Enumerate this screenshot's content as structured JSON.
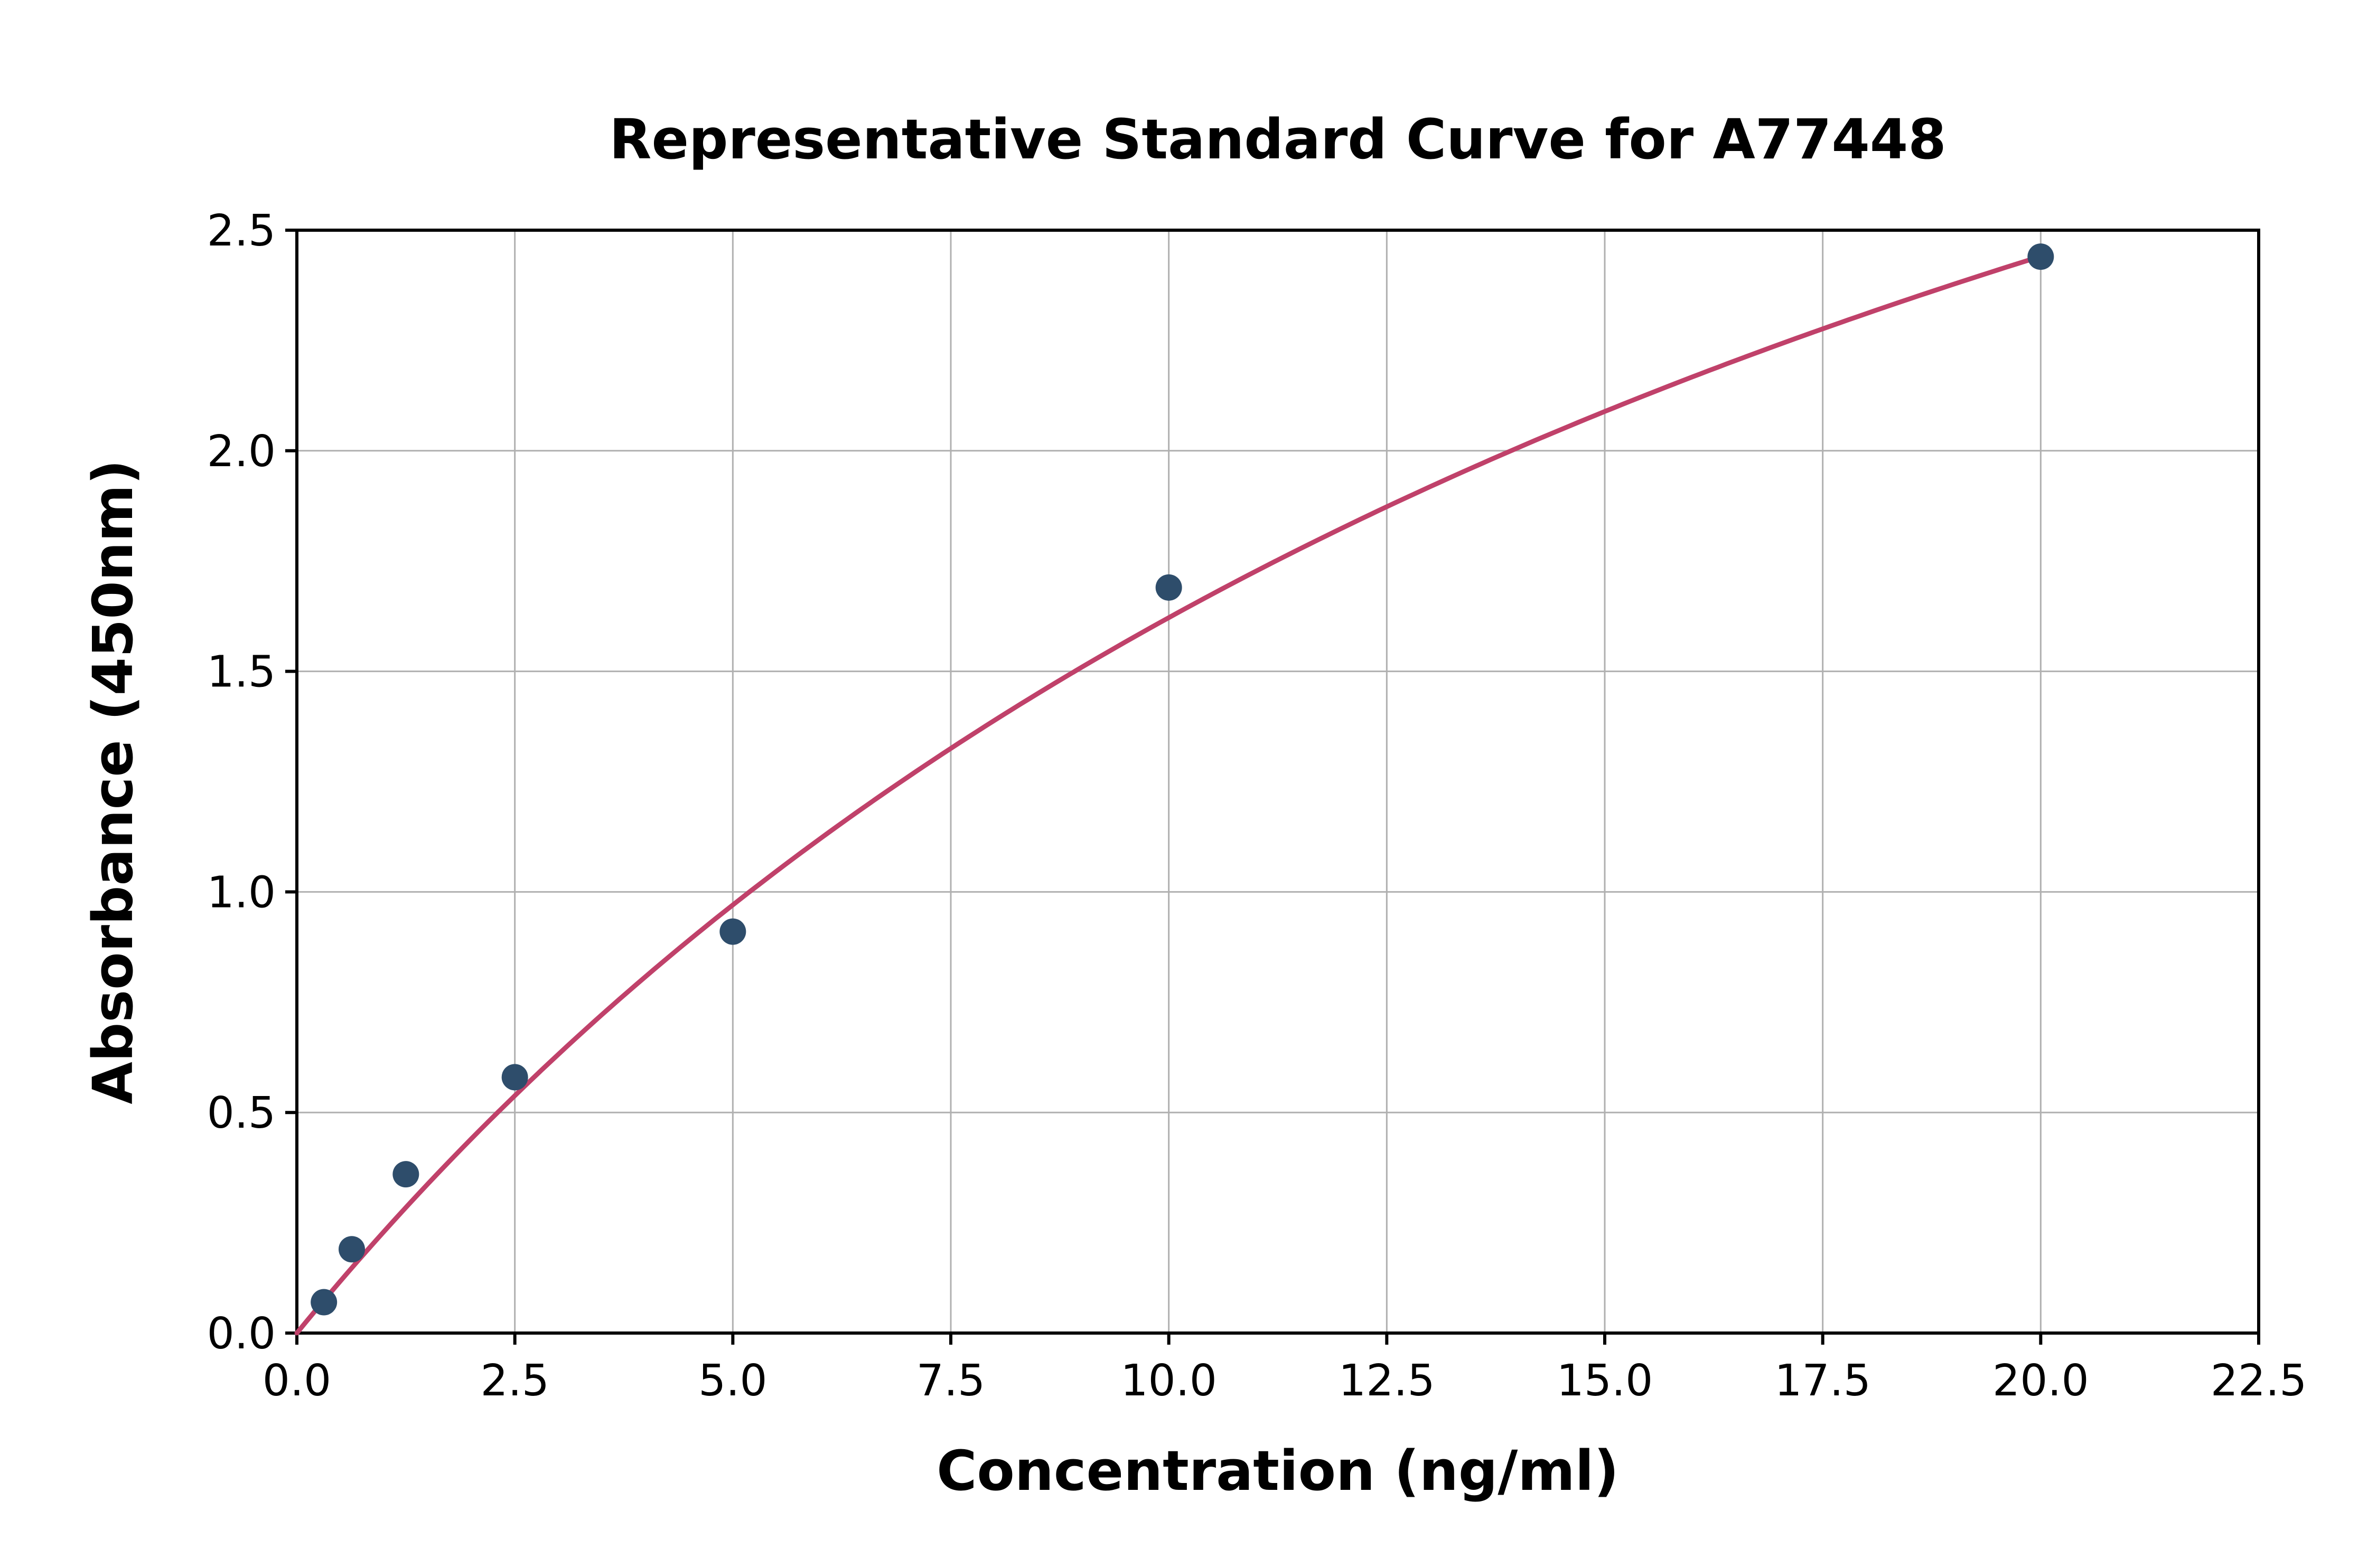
{
  "chart_data": {
    "type": "scatter",
    "title": "Representative Standard Curve for A77448",
    "xlabel": "Concentration (ng/ml)",
    "ylabel": "Absorbance (450nm)",
    "xlim": [
      0,
      22.5
    ],
    "ylim": [
      0,
      2.5
    ],
    "x_ticks": [
      0,
      2.5,
      5,
      7.5,
      10,
      12.5,
      15,
      17.5,
      20,
      22.5
    ],
    "y_ticks": [
      0,
      0.5,
      1,
      1.5,
      2,
      2.5
    ],
    "tick_label_decimals": 1,
    "grid": true,
    "legend_position": "none",
    "points": [
      {
        "x": 0.31,
        "y": 0.07
      },
      {
        "x": 0.63,
        "y": 0.19
      },
      {
        "x": 1.25,
        "y": 0.36
      },
      {
        "x": 2.5,
        "y": 0.58
      },
      {
        "x": 5.0,
        "y": 0.91
      },
      {
        "x": 10.0,
        "y": 1.69
      },
      {
        "x": 20.0,
        "y": 2.44
      }
    ],
    "fit_curve": {
      "model": "michaelis_menten",
      "formula": "y = a*x / (b + x)",
      "a": 4.93,
      "b": 20.4,
      "x_range": [
        0,
        20
      ]
    },
    "colors": {
      "point": "#2e4d6b",
      "curve": "#c0416a",
      "grid": "#b0b0b0",
      "axis": "#000000",
      "text": "#000000",
      "background": "#ffffff"
    }
  }
}
